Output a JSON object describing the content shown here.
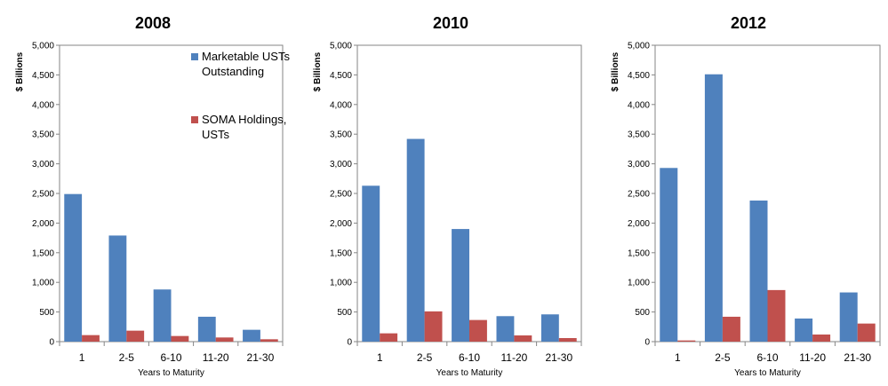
{
  "colors": {
    "marketable": "#4f81bd",
    "soma": "#c0504d"
  },
  "legend": [
    {
      "lines": [
        "Marketable USTs",
        "Outstanding"
      ]
    },
    {
      "lines": [
        "SOMA Holdings,",
        "USTs"
      ]
    }
  ],
  "chart_data": [
    {
      "type": "bar",
      "title": "2008",
      "ylabel": "$ Billions",
      "xlabel": "Years to Maturity",
      "categories": [
        "1",
        "2-5",
        "6-10",
        "11-20",
        "21-30"
      ],
      "ylim": [
        0,
        5000
      ],
      "yticks": [
        "0",
        "500",
        "1,000",
        "1,500",
        "2,000",
        "2,500",
        "3,000",
        "3,500",
        "4,000",
        "4,500",
        "5,000"
      ],
      "legend_position": "top-right",
      "series": [
        {
          "name": "Marketable USTs Outstanding",
          "values": [
            2490,
            1790,
            880,
            420,
            200
          ]
        },
        {
          "name": "SOMA Holdings, USTs",
          "values": [
            110,
            185,
            95,
            70,
            40
          ]
        }
      ]
    },
    {
      "type": "bar",
      "title": "2010",
      "ylabel": "$ Billions",
      "xlabel": "Years to Maturity",
      "categories": [
        "1",
        "2-5",
        "6-10",
        "11-20",
        "21-30"
      ],
      "ylim": [
        0,
        5000
      ],
      "yticks": [
        "0",
        "500",
        "1,000",
        "1,500",
        "2,000",
        "2,500",
        "3,000",
        "3,500",
        "4,000",
        "4,500",
        "5,000"
      ],
      "series": [
        {
          "name": "Marketable USTs Outstanding",
          "values": [
            2630,
            3420,
            1900,
            430,
            460
          ]
        },
        {
          "name": "SOMA Holdings, USTs",
          "values": [
            140,
            510,
            365,
            105,
            60
          ]
        }
      ]
    },
    {
      "type": "bar",
      "title": "2012",
      "ylabel": "$ Billions",
      "xlabel": "Years to Maturity",
      "categories": [
        "1",
        "2-5",
        "6-10",
        "11-20",
        "21-30"
      ],
      "ylim": [
        0,
        5000
      ],
      "yticks": [
        "0",
        "500",
        "1,000",
        "1,500",
        "2,000",
        "2,500",
        "3,000",
        "3,500",
        "4,000",
        "4,500",
        "5,000"
      ],
      "series": [
        {
          "name": "Marketable USTs Outstanding",
          "values": [
            2930,
            4510,
            2380,
            390,
            830
          ]
        },
        {
          "name": "SOMA Holdings, USTs",
          "values": [
            20,
            420,
            870,
            120,
            305
          ]
        }
      ]
    }
  ]
}
